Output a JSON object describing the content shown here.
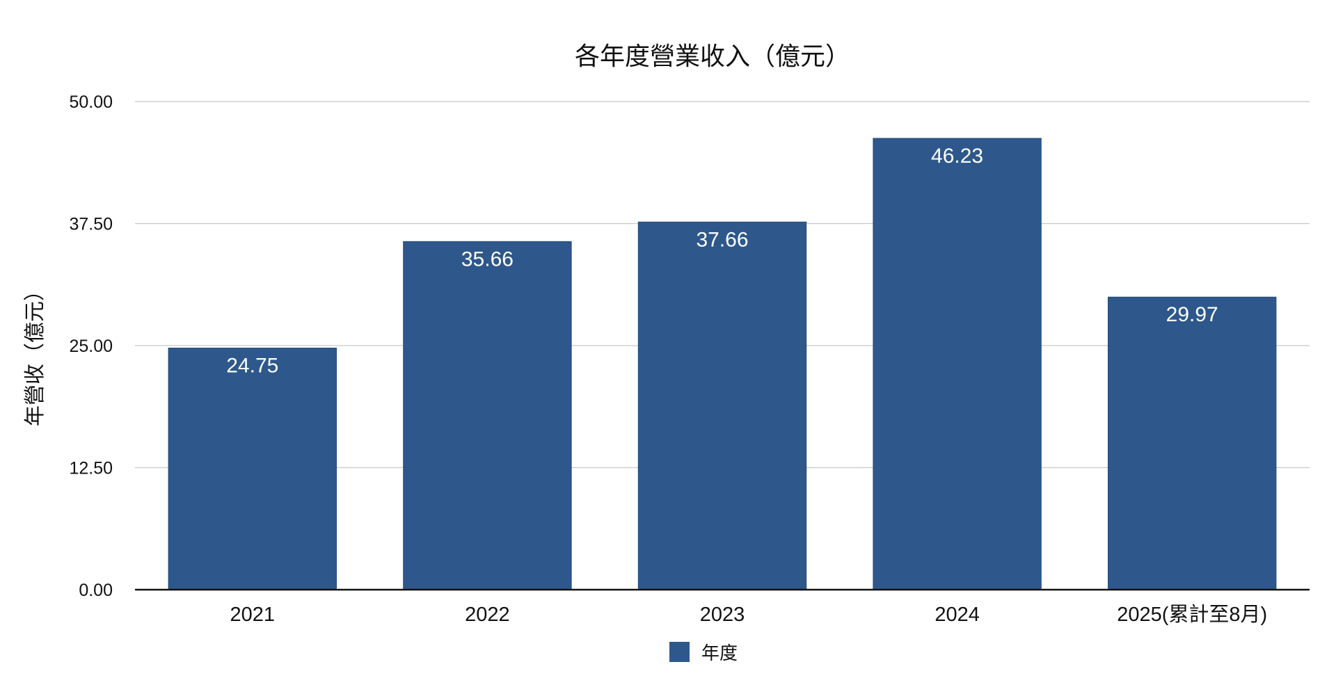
{
  "chart_data": {
    "type": "bar",
    "title": "各年度營業收入（億元）",
    "ylabel": "年營收（億元）",
    "xlabel": "",
    "categories": [
      "2021",
      "2022",
      "2023",
      "2024",
      "2025(累計至8月)"
    ],
    "series": [
      {
        "name": "年度",
        "values": [
          24.75,
          35.66,
          37.66,
          46.23,
          29.97
        ]
      }
    ],
    "data_labels": [
      "24.75",
      "35.66",
      "37.66",
      "46.23",
      "29.97"
    ],
    "ylim": [
      0,
      50
    ],
    "yticks": [
      0,
      12.5,
      25,
      37.5,
      50
    ],
    "ytick_labels": [
      "0.00",
      "12.50",
      "25.00",
      "37.50",
      "50.00"
    ],
    "grid": true,
    "legend_position": "bottom",
    "bar_color": "#2e588b"
  }
}
